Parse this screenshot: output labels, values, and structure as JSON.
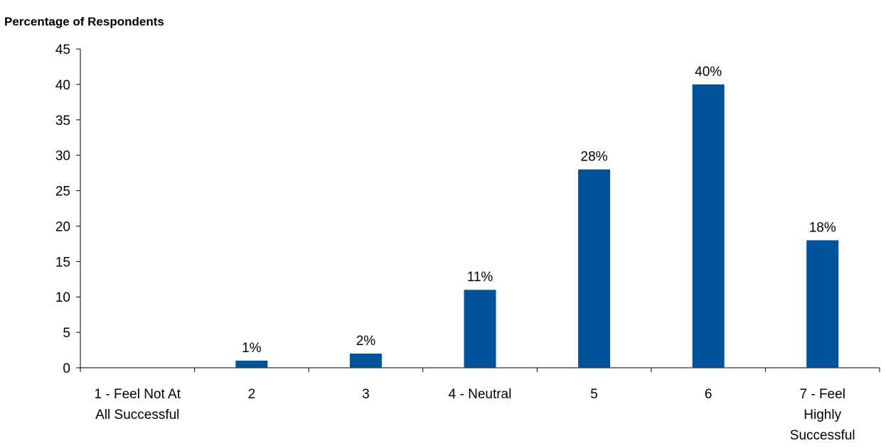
{
  "chart_data": {
    "type": "bar",
    "title": "",
    "ylabel": "Percentage of Respondents",
    "xlabel": "",
    "categories": [
      "1 - Feel Not At All Successful",
      "2",
      "3",
      "4 - Neutral",
      "5",
      "6",
      "7 - Feel Highly Successful"
    ],
    "category_lines": [
      [
        "1 - Feel Not At",
        "All Successful"
      ],
      [
        "2"
      ],
      [
        "3"
      ],
      [
        "4 - Neutral"
      ],
      [
        "5"
      ],
      [
        "6"
      ],
      [
        "7 - Feel",
        "Highly",
        "Successful"
      ]
    ],
    "values": [
      0,
      1,
      2,
      11,
      28,
      40,
      18
    ],
    "data_labels": [
      "",
      "1%",
      "2%",
      "11%",
      "28%",
      "40%",
      "18%"
    ],
    "ylim": [
      0,
      45
    ],
    "yticks": [
      0,
      5,
      10,
      15,
      20,
      25,
      30,
      35,
      40,
      45
    ],
    "bar_color": "#00539b",
    "grid": false,
    "legend": "none"
  }
}
